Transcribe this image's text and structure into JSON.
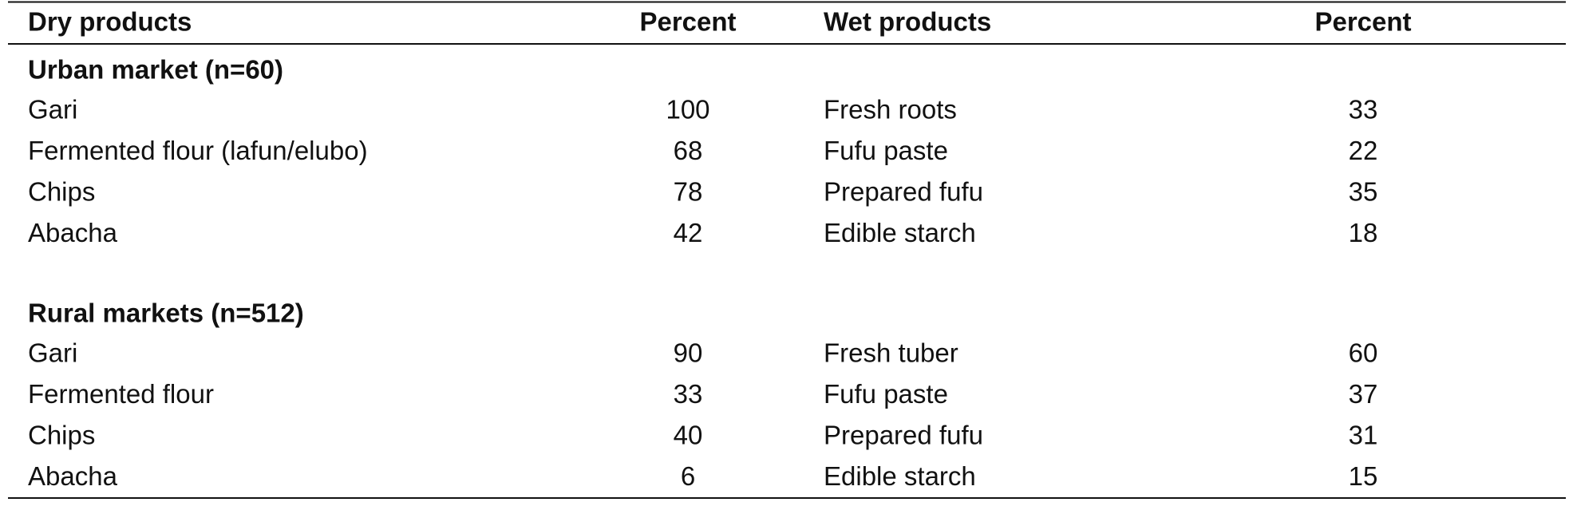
{
  "table": {
    "header": [
      "Dry products",
      "Percent",
      "Wet products",
      "Percent"
    ],
    "sections": [
      {
        "title": "Urban market (n=60)",
        "rows": [
          [
            "Gari",
            100,
            "Fresh roots",
            33
          ],
          [
            "Fermented flour (lafun/elubo)",
            68,
            "Fufu paste",
            22
          ],
          [
            "Chips",
            78,
            "Prepared fufu",
            35
          ],
          [
            "Abacha",
            42,
            "Edible starch",
            18
          ]
        ]
      },
      {
        "title": "Rural markets (n=512)",
        "rows": [
          [
            "Gari",
            90,
            "Fresh tuber",
            60
          ],
          [
            "Fermented flour",
            33,
            "Fufu paste",
            37
          ],
          [
            "Chips",
            40,
            "Prepared fufu",
            31
          ],
          [
            "Abacha",
            6,
            "Edible starch",
            15
          ]
        ]
      }
    ]
  }
}
